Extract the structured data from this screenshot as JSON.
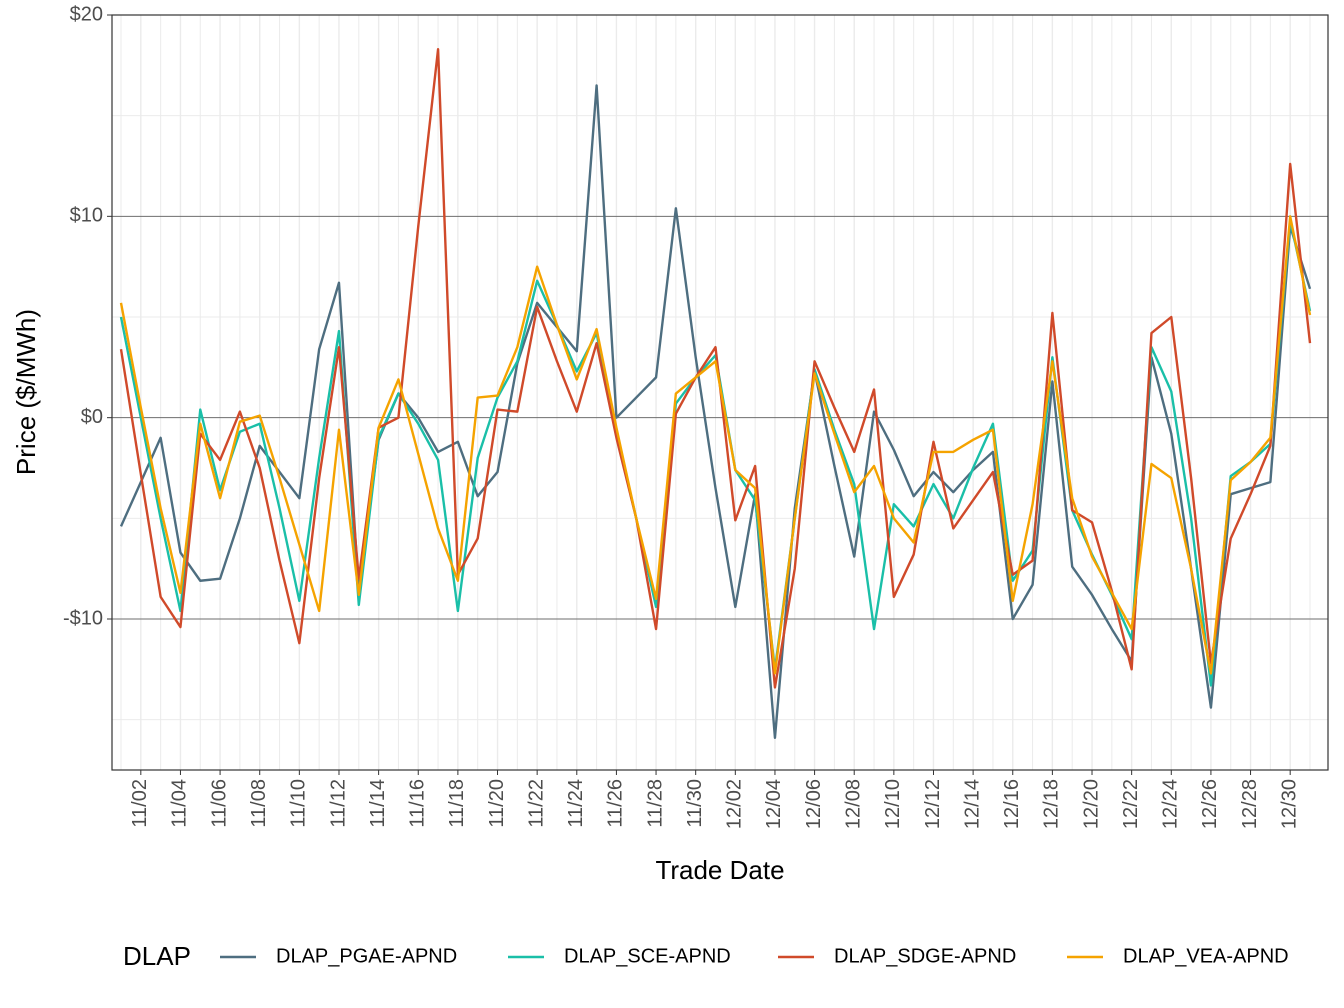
{
  "chart_data": {
    "type": "line",
    "x_label": "Trade Date",
    "y_label": "Price ($/MWh)",
    "legend_title": "DLAP",
    "legend_position": "bottom",
    "grid": true,
    "categories": [
      null,
      "11/02",
      null,
      "11/04",
      null,
      "11/06",
      null,
      "11/08",
      null,
      "11/10",
      null,
      "11/12",
      null,
      "11/14",
      null,
      "11/16",
      null,
      "11/18",
      null,
      "11/20",
      null,
      "11/22",
      null,
      "11/24",
      null,
      "11/26",
      null,
      "11/28",
      null,
      "11/30",
      null,
      "12/02",
      null,
      "12/04",
      null,
      "12/06",
      null,
      "12/08",
      null,
      "12/10",
      null,
      "12/12",
      null,
      "12/14",
      null,
      "12/16",
      null,
      "12/18",
      null,
      "12/20",
      null,
      "12/22",
      null,
      "12/24",
      null,
      "12/26",
      null,
      "12/28",
      null,
      "12/30",
      null
    ],
    "ylim": [
      -17.5,
      20
    ],
    "yticks": [
      {
        "value": -10,
        "label": "-$10"
      },
      {
        "value": 0,
        "label": "$0"
      },
      {
        "value": 10,
        "label": "$10"
      },
      {
        "value": 20,
        "label": "$20"
      }
    ],
    "series": [
      {
        "name": "DLAP_PGAE-APND",
        "color": "#4e6e80",
        "values": [
          -5.4,
          -3.2,
          -1.0,
          -6.7,
          -8.1,
          -8.0,
          -5.0,
          -1.4,
          -2.7,
          -4.0,
          3.4,
          6.7,
          -8.6,
          -1.1,
          1.2,
          0.0,
          -1.7,
          -1.2,
          -3.9,
          -2.7,
          2.7,
          5.7,
          4.5,
          3.3,
          16.5,
          0.0,
          1.0,
          2.0,
          10.4,
          3.0,
          -3.5,
          -9.4,
          -3.8,
          -15.9,
          -4.5,
          2.3,
          -2.4,
          -6.9,
          0.3,
          -1.6,
          -3.9,
          -2.7,
          -3.7,
          -2.6,
          -1.7,
          -10.0,
          -8.3,
          1.8,
          -7.4,
          -8.8,
          -10.5,
          -12.1,
          3.0,
          -0.8,
          -7.5,
          -14.4,
          -3.8,
          -3.5,
          -3.2,
          9.5,
          6.4
        ]
      },
      {
        "name": "DLAP_SCE-APND",
        "color": "#1abfa8",
        "values": [
          5.0,
          0.0,
          -5.0,
          -9.6,
          0.4,
          -3.6,
          -0.7,
          -0.3,
          -4.5,
          -9.1,
          -2.0,
          4.3,
          -9.3,
          -1.0,
          1.2,
          -0.3,
          -2.1,
          -9.6,
          -2.0,
          1.0,
          2.8,
          6.8,
          4.6,
          2.3,
          4.2,
          -0.8,
          -5.0,
          -9.4,
          0.7,
          2.0,
          3.1,
          -2.6,
          -4.1,
          -12.5,
          -5.0,
          2.4,
          -0.6,
          -3.3,
          -10.5,
          -4.3,
          -5.4,
          -3.3,
          -5.0,
          -2.5,
          -0.3,
          -8.1,
          -6.6,
          3.0,
          -4.6,
          -6.8,
          -8.8,
          -11.0,
          3.5,
          1.3,
          -5.0,
          -13.3,
          -2.9,
          -2.2,
          -1.3,
          9.8,
          5.3
        ]
      },
      {
        "name": "DLAP_SDGE-APND",
        "color": "#d04a2a",
        "values": [
          3.4,
          -2.8,
          -8.9,
          -10.4,
          -0.8,
          -2.1,
          0.3,
          -2.5,
          -7.1,
          -11.2,
          -3.0,
          3.5,
          -8.0,
          -0.5,
          0.0,
          9.5,
          18.3,
          -7.8,
          -6.0,
          0.4,
          0.3,
          5.5,
          2.8,
          0.3,
          3.7,
          -1.0,
          -5.0,
          -10.5,
          0.2,
          2.0,
          3.5,
          -5.1,
          -2.4,
          -13.4,
          -7.5,
          2.8,
          0.5,
          -1.7,
          1.4,
          -8.9,
          -6.8,
          -1.2,
          -5.5,
          -4.1,
          -2.7,
          -7.8,
          -7.1,
          5.2,
          -4.6,
          -5.2,
          -8.6,
          -12.5,
          4.2,
          5.0,
          -3.0,
          -12.2,
          -6.0,
          -3.8,
          -1.4,
          12.6,
          3.7
        ]
      },
      {
        "name": "DLAP_VEA-APND",
        "color": "#f5a300",
        "values": [
          5.7,
          0.5,
          -4.5,
          -8.7,
          -0.3,
          -4.0,
          -0.2,
          0.1,
          -3.0,
          -6.3,
          -9.6,
          -0.6,
          -8.8,
          -0.5,
          1.9,
          -1.8,
          -5.5,
          -8.1,
          1.0,
          1.1,
          3.5,
          7.5,
          4.6,
          1.9,
          4.4,
          -0.5,
          -5.0,
          -9.0,
          1.2,
          2.0,
          2.8,
          -2.6,
          -3.5,
          -12.7,
          -5.0,
          2.2,
          -0.8,
          -3.7,
          -2.4,
          -5.0,
          -6.2,
          -1.7,
          -1.7,
          -1.1,
          -0.6,
          -9.1,
          -4.3,
          2.8,
          -4.0,
          -6.9,
          -8.7,
          -10.5,
          -2.3,
          -3.0,
          -7.5,
          -12.7,
          -3.1,
          -2.2,
          -1.0,
          10.0,
          5.1
        ]
      }
    ]
  }
}
